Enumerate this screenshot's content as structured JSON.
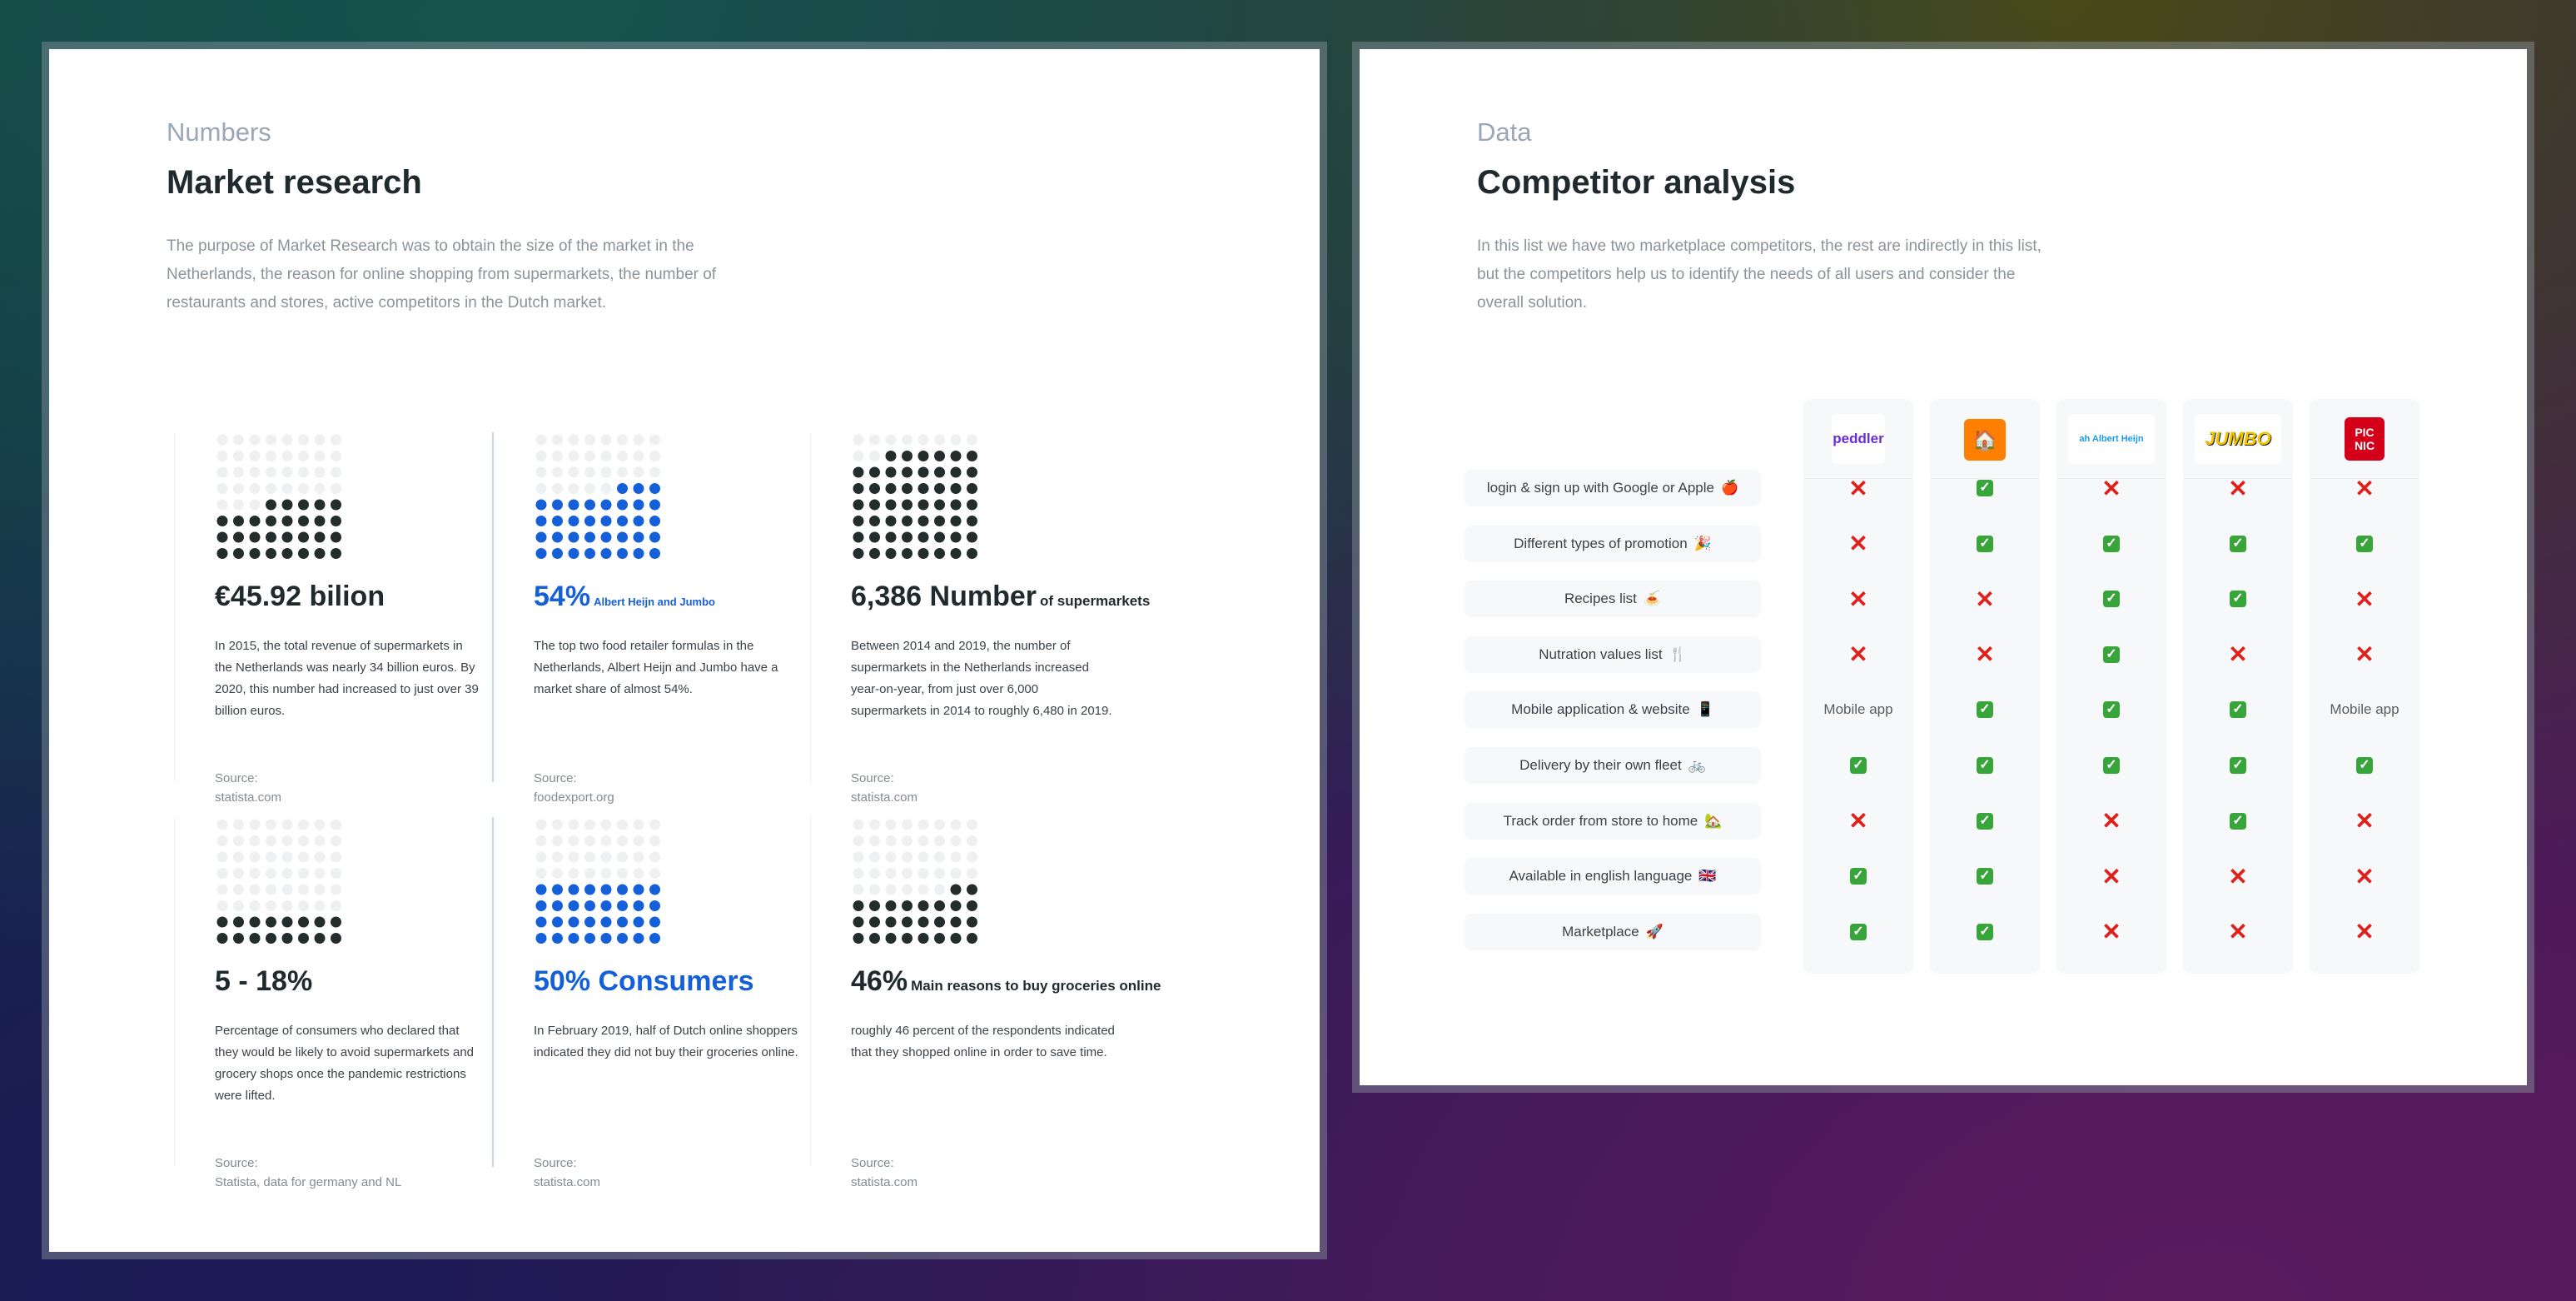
{
  "numbers": {
    "eyebrow": "Numbers",
    "title": "Market research",
    "intro": "The purpose of Market Research was to obtain the size of the market in the Netherlands, the reason for online shopping from supermarkets, the number of restaurants and stores, active competitors in the Dutch market.",
    "cards": [
      {
        "big": "€45.92 bilion",
        "small": "",
        "desc": "In 2015, the total revenue of supermarkets in the Netherlands was nearly 34 billion euros. By 2020, this number had increased to just over 39 billion euros.",
        "src_label": "Source:",
        "src": "statista.com"
      },
      {
        "big": "54%",
        "small": "Albert Heijn and Jumbo",
        "desc": "The top two food retailer formulas in the Netherlands, Albert Heijn and Jumbo have a market share of almost 54%.",
        "src_label": "Source:",
        "src": "foodexport.org"
      },
      {
        "big": "6,386 Number",
        "small": "of supermarkets",
        "desc": "Between 2014 and 2019, the number of supermarkets in the Netherlands increased year-on-year, from just over 6,000 supermarkets in 2014 to roughly 6,480 in 2019.",
        "src_label": "Source:",
        "src": "statista.com"
      },
      {
        "big": "5 - 18%",
        "small": "",
        "desc": "Percentage of consumers who declared that they would be likely to avoid supermarkets and grocery shops once the pandemic restrictions were lifted.",
        "src_label": "Source:",
        "src": "Statista, data for germany and NL"
      },
      {
        "big": "50% Consumers",
        "small": "",
        "desc": "In February 2019, half of Dutch online shoppers indicated they did not buy their groceries online.",
        "src_label": "Source:",
        "src": "statista.com"
      },
      {
        "big": "46%",
        "small": "Main reasons to buy groceries online",
        "desc": "roughly 46 percent of the respondents indicated that they shopped online in order to save time.",
        "src_label": "Source:",
        "src": "statista.com"
      }
    ],
    "dot_fill": [
      0.46,
      0.54,
      0.85,
      0.25,
      0.5,
      0.4
    ]
  },
  "competitors": {
    "eyebrow": "Data",
    "title": "Competitor analysis",
    "intro": "In this list we have two marketplace competitors, the rest are indirectly in this list, but the competitors help us to identify the needs of all users and consider the overall solution.",
    "brands": [
      {
        "name": "peddler",
        "logo_text": "peddler",
        "bg": "#ffffff",
        "fg": "#6a2bd9"
      },
      {
        "name": "thuisbezorgd",
        "logo_text": "🏠",
        "bg": "#ff8000",
        "fg": "#ffffff"
      },
      {
        "name": "albert-heijn",
        "logo_text": "ah Albert Heijn",
        "bg": "#ffffff",
        "fg": "#1c9be6"
      },
      {
        "name": "jumbo",
        "logo_text": "JUMBO",
        "bg": "#ffffff",
        "fg": "#f3c300"
      },
      {
        "name": "picnic",
        "logo_text": "PIC NIC",
        "bg": "#d4001a",
        "fg": "#ffffff"
      }
    ],
    "features": [
      {
        "label": "login & sign up with Google or Apple",
        "emoji": "🍎",
        "values": [
          "no",
          "yes",
          "no",
          "no",
          "no"
        ]
      },
      {
        "label": "Different types of promotion",
        "emoji": "🎉",
        "values": [
          "no",
          "yes",
          "yes",
          "yes",
          "yes"
        ]
      },
      {
        "label": "Recipes list",
        "emoji": "🍝",
        "values": [
          "no",
          "no",
          "yes",
          "yes",
          "no"
        ]
      },
      {
        "label": "Nutration values list",
        "emoji": "🍴",
        "values": [
          "no",
          "no",
          "yes",
          "no",
          "no"
        ]
      },
      {
        "label": "Mobile application & website",
        "emoji": "📱",
        "values": [
          "Mobile app",
          "yes",
          "yes",
          "yes",
          "Mobile app"
        ]
      },
      {
        "label": "Delivery by their own fleet",
        "emoji": "🚲",
        "values": [
          "yes",
          "yes",
          "yes",
          "yes",
          "yes"
        ]
      },
      {
        "label": "Track order from store to home",
        "emoji": "🏡",
        "values": [
          "no",
          "yes",
          "no",
          "yes",
          "no"
        ]
      },
      {
        "label": "Available in english language",
        "emoji": "🇬🇧",
        "values": [
          "yes",
          "yes",
          "no",
          "no",
          "no"
        ]
      },
      {
        "label": "Marketplace",
        "emoji": "🚀",
        "values": [
          "yes",
          "yes",
          "no",
          "no",
          "no"
        ]
      }
    ],
    "yes_glyph": "✓",
    "no_glyph": "✕"
  }
}
